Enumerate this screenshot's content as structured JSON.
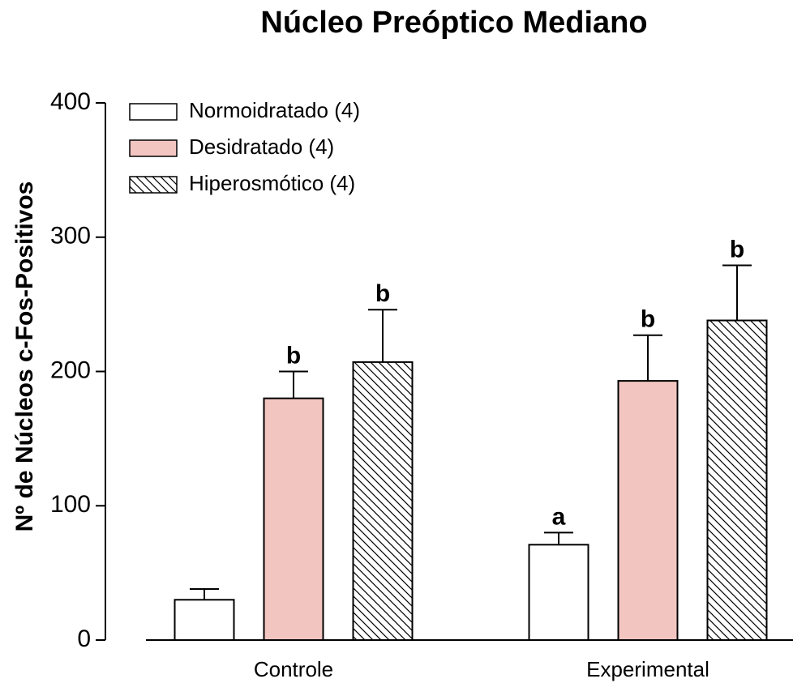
{
  "chart_data": {
    "type": "bar",
    "title": "Núcleo Preóptico Mediano",
    "y_label": "Nº de Núcleos c-Fos-Positivos",
    "categories": [
      "Controle",
      "Experimental"
    ],
    "series": [
      {
        "name": "Normoidratado (4)",
        "color": "#ffffff",
        "hatch": false,
        "values": [
          30,
          71
        ],
        "errors": [
          8,
          9
        ],
        "labels": [
          null,
          "a"
        ]
      },
      {
        "name": "Desidratado (4)",
        "color": "#f3c5c1",
        "hatch": false,
        "values": [
          180,
          193
        ],
        "errors": [
          20,
          34
        ],
        "labels": [
          "b",
          "b"
        ]
      },
      {
        "name": "Hiperosmótico (4)",
        "color": "#ffffff",
        "hatch": true,
        "values": [
          207,
          238
        ],
        "errors": [
          39,
          41
        ],
        "labels": [
          "b",
          "b"
        ]
      }
    ],
    "ylim": [
      0,
      400
    ],
    "yticks": [
      0,
      100,
      200,
      300,
      400
    ],
    "legend": "top-left"
  }
}
